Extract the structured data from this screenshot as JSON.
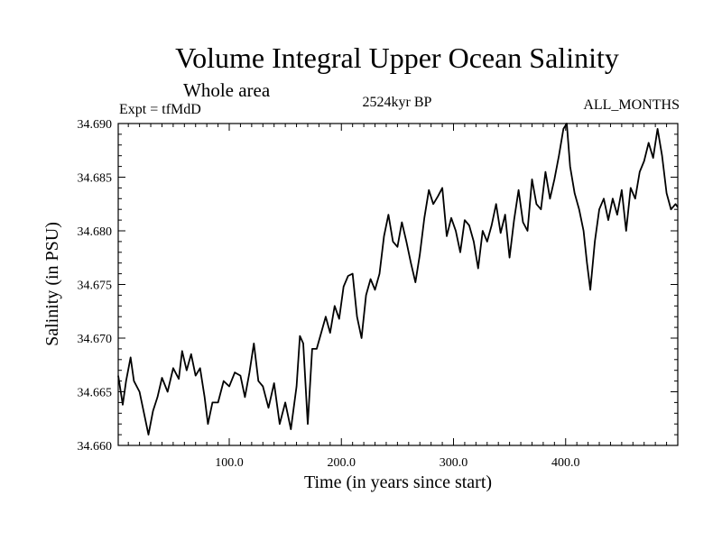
{
  "title": "Volume Integral Upper Ocean Salinity",
  "subtitle": "Whole area",
  "experiment": "Expt = tfMdD",
  "period": "2524kyr BP",
  "months": "ALL_MONTHS",
  "chart_data": {
    "type": "line",
    "title": "Volume Integral Upper Ocean Salinity",
    "xlabel": "Time (in years since start)",
    "ylabel": "Salinity (in PSU)",
    "xlim": [
      1,
      500
    ],
    "ylim": [
      34.66,
      34.69
    ],
    "x_ticks": [
      100,
      200,
      300,
      400
    ],
    "x_tick_labels": [
      "100.0",
      "200.0",
      "300.0",
      "400.0"
    ],
    "y_ticks": [
      34.66,
      34.665,
      34.67,
      34.675,
      34.68,
      34.685,
      34.69
    ],
    "y_tick_labels": [
      "34.660",
      "34.665",
      "34.670",
      "34.675",
      "34.680",
      "34.685",
      "34.690"
    ],
    "grid": false,
    "series": [
      {
        "name": "Salinity",
        "color": "#000000",
        "x": [
          1,
          5,
          8,
          12,
          15,
          20,
          25,
          28,
          32,
          36,
          40,
          45,
          50,
          55,
          58,
          62,
          66,
          70,
          74,
          78,
          81,
          85,
          90,
          95,
          100,
          105,
          110,
          114,
          118,
          122,
          126,
          130,
          135,
          140,
          145,
          150,
          155,
          160,
          163,
          166,
          170,
          174,
          178,
          182,
          186,
          190,
          194,
          198,
          202,
          206,
          210,
          214,
          218,
          222,
          226,
          230,
          234,
          238,
          242,
          246,
          250,
          254,
          258,
          262,
          266,
          270,
          274,
          278,
          282,
          286,
          290,
          294,
          298,
          302,
          306,
          310,
          314,
          318,
          322,
          326,
          330,
          334,
          338,
          342,
          346,
          350,
          354,
          358,
          362,
          366,
          370,
          374,
          378,
          382,
          386,
          390,
          394,
          398,
          401,
          404,
          408,
          412,
          416,
          419,
          422,
          426,
          430,
          434,
          438,
          442,
          446,
          450,
          454,
          458,
          462,
          466,
          470,
          474,
          478,
          482,
          486,
          490,
          494,
          498,
          500
        ],
        "y": [
          34.6665,
          34.6638,
          34.666,
          34.6682,
          34.666,
          34.665,
          34.6625,
          34.661,
          34.6632,
          34.6645,
          34.6663,
          34.665,
          34.6672,
          34.6662,
          34.6688,
          34.667,
          34.6685,
          34.6665,
          34.6672,
          34.6645,
          34.662,
          34.664,
          34.664,
          34.666,
          34.6655,
          34.6668,
          34.6665,
          34.6645,
          34.6668,
          34.6695,
          34.666,
          34.6655,
          34.6635,
          34.6658,
          34.662,
          34.664,
          34.6615,
          34.6655,
          34.6702,
          34.6695,
          34.662,
          34.669,
          34.669,
          34.6705,
          34.672,
          34.6705,
          34.673,
          34.6718,
          34.6748,
          34.6758,
          34.676,
          34.672,
          34.67,
          34.674,
          34.6755,
          34.6745,
          34.676,
          34.6795,
          34.6815,
          34.679,
          34.6785,
          34.6808,
          34.679,
          34.677,
          34.6752,
          34.6778,
          34.6812,
          34.6838,
          34.6825,
          34.6832,
          34.684,
          34.6795,
          34.6812,
          34.68,
          34.678,
          34.681,
          34.6805,
          34.679,
          34.6765,
          34.68,
          34.679,
          34.6805,
          34.6825,
          34.6798,
          34.6815,
          34.6775,
          34.681,
          34.6838,
          34.6808,
          34.68,
          34.6848,
          34.6825,
          34.682,
          34.6855,
          34.683,
          34.6848,
          34.687,
          34.6895,
          34.69,
          34.686,
          34.6835,
          34.682,
          34.68,
          34.677,
          34.6745,
          34.679,
          34.682,
          34.683,
          34.681,
          34.683,
          34.6815,
          34.6838,
          34.68,
          34.684,
          34.683,
          34.6855,
          34.6865,
          34.6882,
          34.6868,
          34.6895,
          34.687,
          34.6835,
          34.682,
          34.6825,
          34.6822
        ]
      }
    ]
  }
}
